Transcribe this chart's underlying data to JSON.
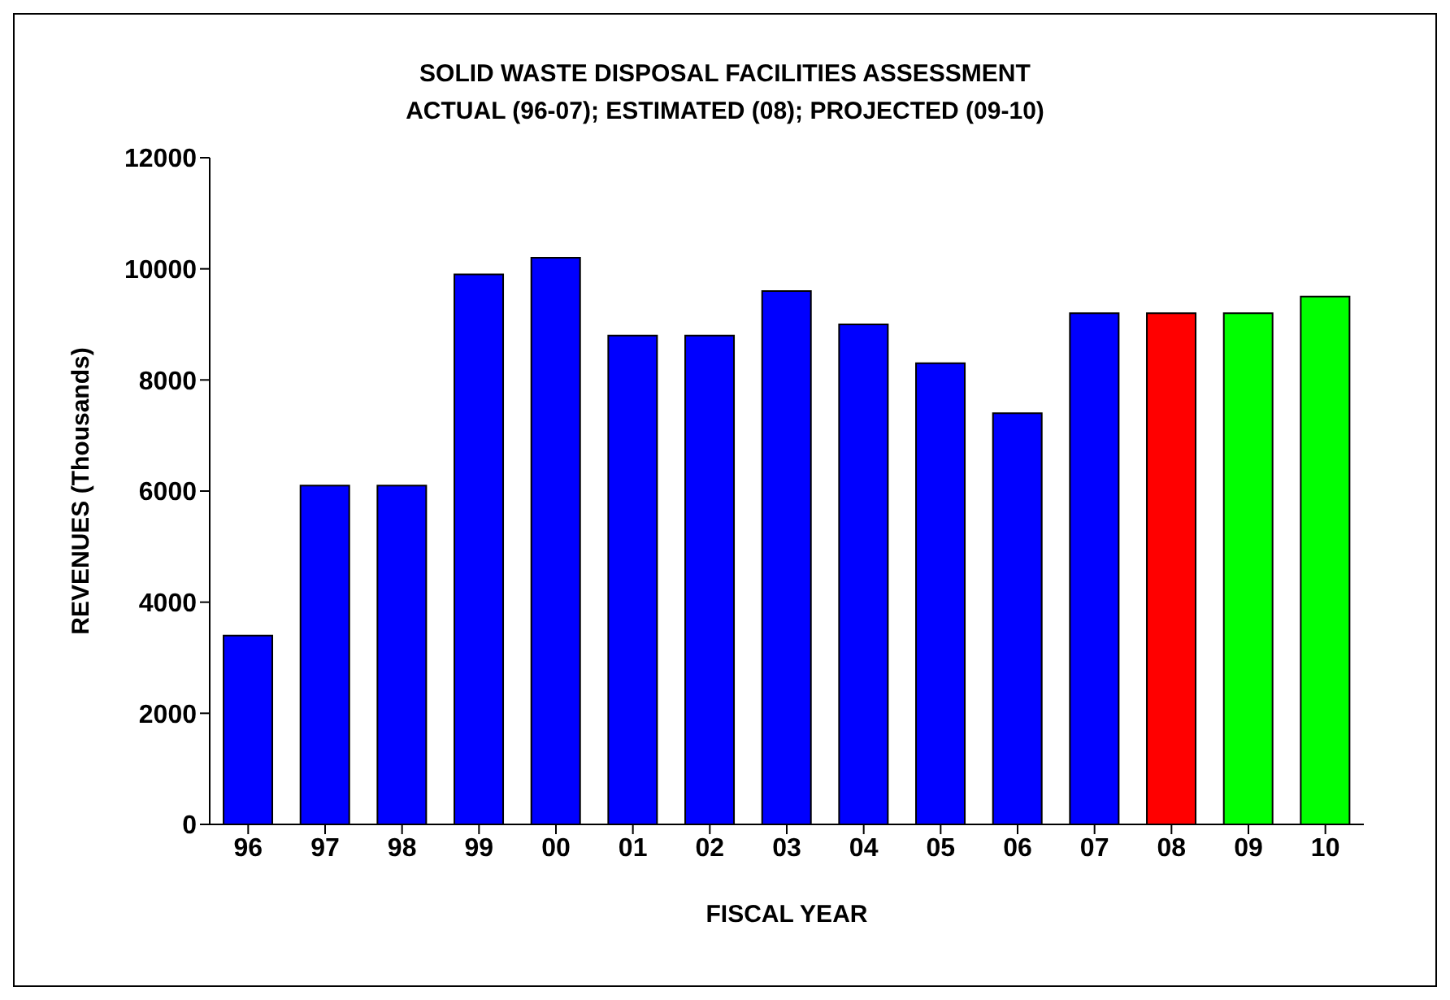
{
  "chart_data": {
    "type": "bar",
    "title": "SOLID WASTE DISPOSAL FACILITIES ASSESSMENT",
    "subtitle": "ACTUAL (96-07); ESTIMATED (08); PROJECTED (09-10)",
    "xlabel": "FISCAL YEAR",
    "ylabel": "REVENUES (Thousands)",
    "categories": [
      "96",
      "97",
      "98",
      "99",
      "00",
      "01",
      "02",
      "03",
      "04",
      "05",
      "06",
      "07",
      "08",
      "09",
      "10"
    ],
    "values": [
      3400,
      6100,
      6100,
      9900,
      10200,
      8800,
      8800,
      9600,
      9000,
      8300,
      7400,
      9200,
      9200,
      9200,
      9500
    ],
    "colors": [
      "#0000ff",
      "#0000ff",
      "#0000ff",
      "#0000ff",
      "#0000ff",
      "#0000ff",
      "#0000ff",
      "#0000ff",
      "#0000ff",
      "#0000ff",
      "#0000ff",
      "#0000ff",
      "#ff0000",
      "#00ff00",
      "#00ff00"
    ],
    "ylim": [
      0,
      12000
    ],
    "yticks": [
      0,
      2000,
      4000,
      6000,
      8000,
      10000,
      12000
    ],
    "grid": false
  }
}
